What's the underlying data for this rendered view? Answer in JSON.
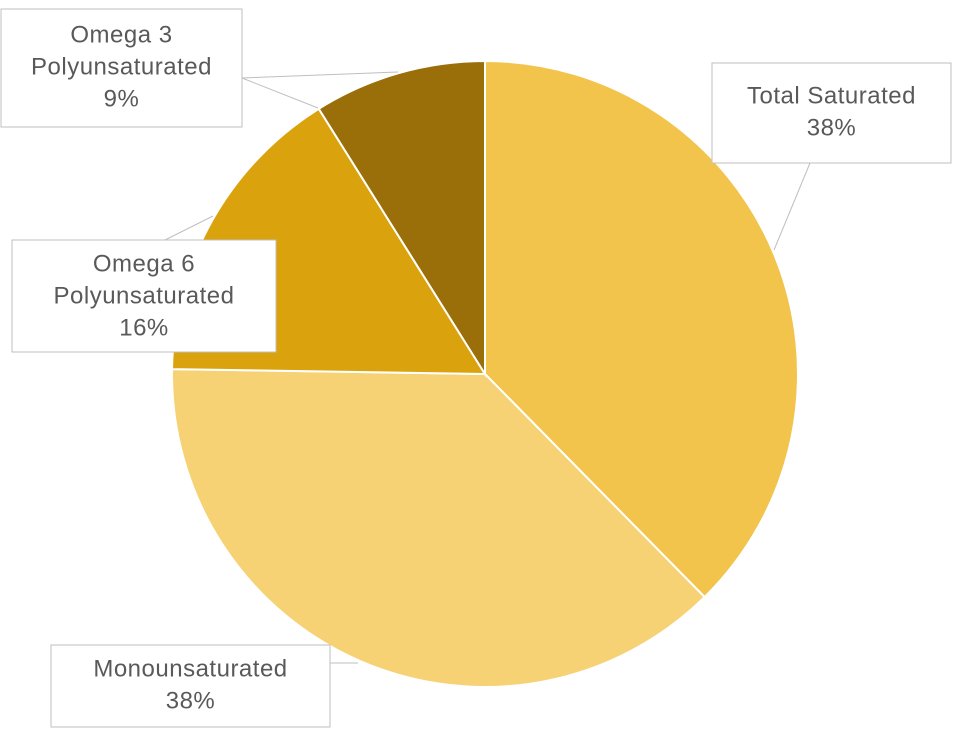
{
  "chart_data": {
    "type": "pie",
    "title": "",
    "start_angle_deg": 0,
    "direction": "clockwise",
    "slices": [
      {
        "label_lines": [
          "Total Saturated"
        ],
        "value": 38,
        "value_label": "38%",
        "color": "#F2C44C"
      },
      {
        "label_lines": [
          "Monounsaturated"
        ],
        "value": 38,
        "value_label": "38%",
        "color": "#F6D275"
      },
      {
        "label_lines": [
          "Omega 6",
          "Polyunsaturated"
        ],
        "value": 16,
        "value_label": "16%",
        "color": "#DAA30E"
      },
      {
        "label_lines": [
          "Omega 3",
          "Polyunsaturated"
        ],
        "value": 9,
        "value_label": "9%",
        "color": "#9A6F09"
      }
    ],
    "legend": "none",
    "data_labels": "callouts"
  }
}
